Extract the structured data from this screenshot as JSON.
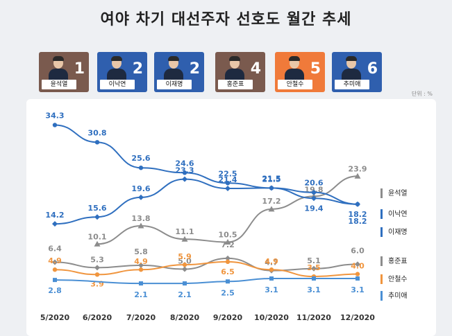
{
  "title": "여야 차기 대선주자 선호도 월간 추세",
  "unit": "단위 : %",
  "candidates": [
    {
      "name": "윤석열",
      "rank": "1",
      "color": "#7a5a4e"
    },
    {
      "name": "이낙연",
      "rank": "2",
      "color": "#2f5fae"
    },
    {
      "name": "이재명",
      "rank": "2",
      "color": "#2f5fae"
    },
    {
      "name": "홍준표",
      "rank": "4",
      "color": "#7a5a4e"
    },
    {
      "name": "안철수",
      "rank": "5",
      "color": "#f07a3a"
    },
    {
      "name": "추미애",
      "rank": "6",
      "color": "#2f5fae"
    }
  ],
  "chart_data": {
    "type": "line",
    "categories": [
      "5/2020",
      "6/2020",
      "7/2020",
      "8/2020",
      "9/2020",
      "10/2020",
      "11/2020",
      "12/2020"
    ],
    "ylim": [
      0,
      36
    ],
    "grid": false,
    "legend": "right",
    "series": [
      {
        "name": "윤석열",
        "color": "#8c8c8c",
        "marker": "triangle",
        "values": [
          null,
          10.1,
          13.8,
          11.1,
          10.5,
          17.2,
          19.8,
          23.9
        ]
      },
      {
        "name": "이낙연",
        "color": "#2f6fbf",
        "marker": "circle",
        "values": [
          34.3,
          30.8,
          25.6,
          24.6,
          22.5,
          21.5,
          20.6,
          18.2
        ]
      },
      {
        "name": "이재명",
        "color": "#2f6fbf",
        "marker": "diamond",
        "values": [
          14.2,
          15.6,
          19.6,
          23.3,
          21.4,
          21.5,
          19.4,
          18.2
        ]
      },
      {
        "name": "홍준표",
        "color": "#8c8c8c",
        "marker": "diamond",
        "values": [
          6.4,
          5.3,
          5.8,
          5.0,
          7.2,
          4.7,
          5.1,
          6.0
        ]
      },
      {
        "name": "안철수",
        "color": "#f0953e",
        "marker": "circle",
        "values": [
          4.9,
          3.9,
          4.9,
          5.9,
          6.5,
          4.9,
          3.5,
          4.0
        ]
      },
      {
        "name": "추미애",
        "color": "#4a8fd4",
        "marker": "square",
        "values": [
          2.8,
          null,
          2.1,
          2.1,
          2.5,
          3.1,
          3.1,
          3.1
        ]
      }
    ]
  }
}
